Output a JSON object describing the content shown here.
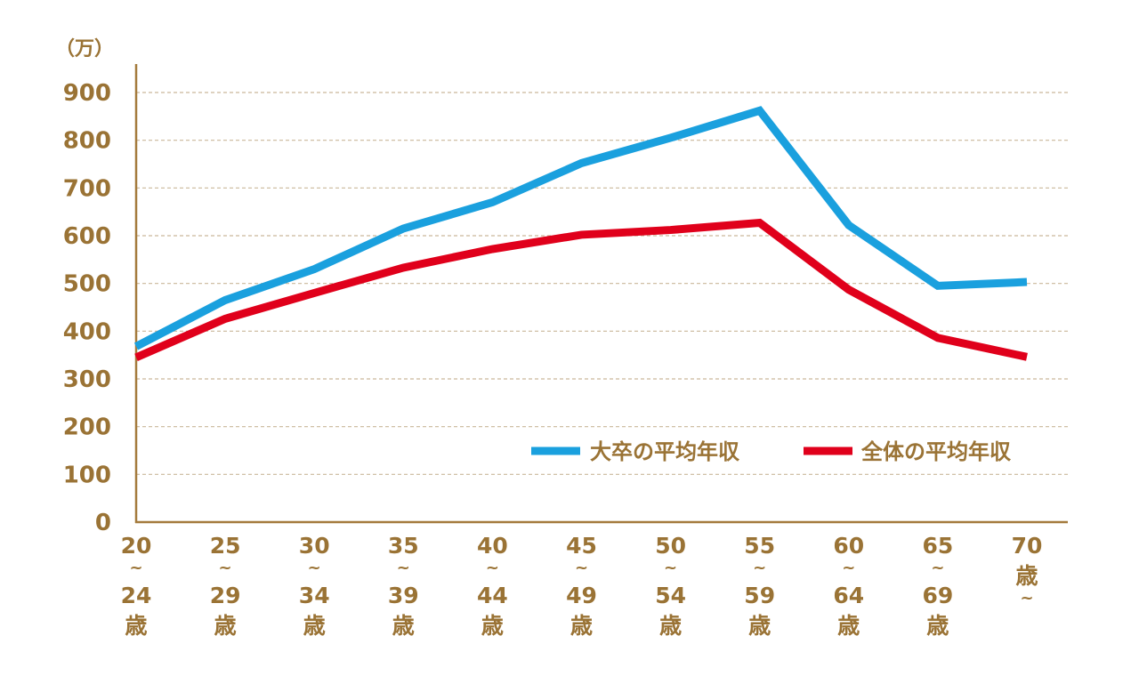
{
  "chart_data": {
    "type": "line",
    "unit_label": "（万）",
    "ylim": [
      0,
      900
    ],
    "y_ticks": [
      0,
      100,
      200,
      300,
      400,
      500,
      600,
      700,
      800,
      900
    ],
    "grid": true,
    "legend_position": "bottom-right",
    "categories": [
      [
        "20",
        "~",
        "24",
        "歳"
      ],
      [
        "25",
        "~",
        "29",
        "歳"
      ],
      [
        "30",
        "~",
        "34",
        "歳"
      ],
      [
        "35",
        "~",
        "39",
        "歳"
      ],
      [
        "40",
        "~",
        "44",
        "歳"
      ],
      [
        "45",
        "~",
        "49",
        "歳"
      ],
      [
        "50",
        "~",
        "54",
        "歳"
      ],
      [
        "55",
        "~",
        "59",
        "歳"
      ],
      [
        "60",
        "~",
        "64",
        "歳"
      ],
      [
        "65",
        "~",
        "69",
        "歳"
      ],
      [
        "70",
        "歳",
        "~"
      ]
    ],
    "series": [
      {
        "name": "大卒の平均年収",
        "color": "#1aa0de",
        "values": [
          368,
          465,
          530,
          615,
          670,
          752,
          805,
          862,
          622,
          495,
          503
        ]
      },
      {
        "name": "全体の平均年収",
        "color": "#e0001b",
        "values": [
          345,
          426,
          480,
          533,
          572,
          602,
          612,
          627,
          487,
          386,
          346
        ]
      }
    ]
  }
}
